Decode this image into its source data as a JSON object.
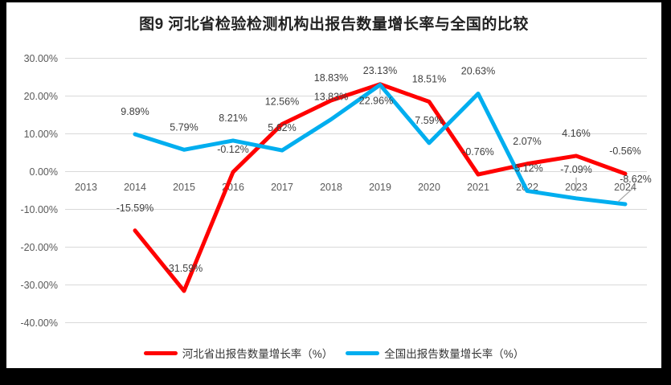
{
  "frame": {
    "background": "#000000",
    "panel_background": "#FFFFFF"
  },
  "title": "图9 河北省检验检测机构出报告数量增长率与全国的比较",
  "chart_data": {
    "type": "line",
    "title": "图9 河北省检验检测机构出报告数量增长率与全国的比较",
    "categories": [
      "2013",
      "2014",
      "2015",
      "2016",
      "2017",
      "2018",
      "2019",
      "2020",
      "2021",
      "2022",
      "2023",
      "2024"
    ],
    "series": [
      {
        "name": "河北省出报告数量增长率（%）",
        "color": "#FF0000",
        "values": [
          null,
          -15.59,
          -31.59,
          -0.12,
          12.56,
          18.83,
          23.13,
          18.51,
          -0.76,
          2.07,
          4.16,
          -0.56
        ]
      },
      {
        "name": "全国出报告数量增长率（%）",
        "color": "#00AEEF",
        "values": [
          null,
          9.89,
          5.79,
          8.21,
          5.62,
          13.83,
          22.96,
          7.59,
          20.63,
          -5.12,
          -7.09,
          -8.62
        ]
      }
    ],
    "ylim": [
      -40,
      30
    ],
    "y_tick_step": 10,
    "y_tick_labels": [
      "30.00%",
      "20.00%",
      "10.00%",
      "0.00%",
      "-10.00%",
      "-20.00%",
      "-30.00%",
      "-40.00%"
    ],
    "grid": true,
    "data_labels": true,
    "data_label_format": "0.00%",
    "legend_position": "bottom",
    "colors": {
      "gridline": "#D9D9D9",
      "tick_label": "#595959",
      "data_label": "#404040",
      "leader_line": "#A6A6A6",
      "title": "#222222"
    }
  }
}
